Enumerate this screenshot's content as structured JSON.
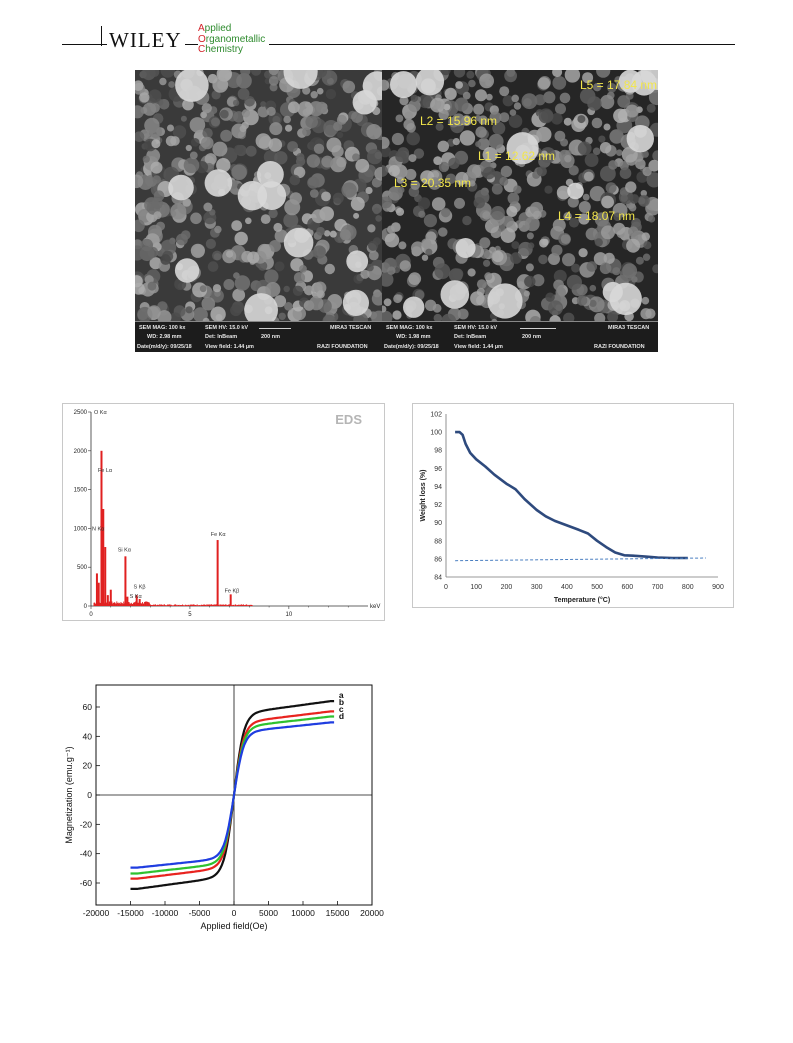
{
  "header": {
    "publisher": "WILEY",
    "journal_lines": [
      {
        "initial": "A",
        "rest": "pplied"
      },
      {
        "initial": "O",
        "rest": "rganometallic"
      },
      {
        "initial": "C",
        "rest": "hemistry"
      }
    ]
  },
  "sem": {
    "left_panel": {
      "info": [
        "SEM MAG: 100 kx",
        "SEM HV: 15.0 kV",
        "MIRA3 TESCAN",
        "WD: 2.98 mm",
        "Det: InBeam",
        "200 nm",
        "Date(m/d/y): 09/25/18",
        "View field: 1.44 µm",
        "RAZI FOUNDATION"
      ]
    },
    "right_panel": {
      "measurements": [
        "L5 = 17.84 nm",
        "L2 = 15.96 nm",
        "L1 = 12.62 nm",
        "L3 = 20.35 nm",
        "L4 = 18.07 nm"
      ],
      "info": [
        "SEM MAG: 100 kx",
        "SEM HV: 15.0 kV",
        "MIRA3 TESCAN",
        "WD: 1.98 mm",
        "Det: InBeam",
        "200 nm",
        "Date(m/d/y): 09/25/18",
        "View field: 1.44 µm",
        "RAZI FOUNDATION"
      ]
    }
  },
  "chart_data": [
    {
      "type": "bar",
      "title": "EDS",
      "xlabel": "keV",
      "ylabel": "",
      "xlim": [
        0,
        14
      ],
      "ylim": [
        0,
        2500
      ],
      "x_ticks": [
        0,
        5,
        10
      ],
      "y_ticks": [
        0,
        500,
        1000,
        1500,
        2000,
        2500
      ],
      "peaks": [
        {
          "x": 0.3,
          "y": 420
        },
        {
          "x": 0.53,
          "y": 2000
        },
        {
          "x": 0.62,
          "y": 1250
        },
        {
          "x": 0.72,
          "y": 760
        },
        {
          "x": 0.39,
          "y": 300
        },
        {
          "x": 0.85,
          "y": 140
        },
        {
          "x": 1.0,
          "y": 210
        },
        {
          "x": 1.74,
          "y": 640
        },
        {
          "x": 1.84,
          "y": 120
        },
        {
          "x": 2.31,
          "y": 140
        },
        {
          "x": 2.46,
          "y": 90
        },
        {
          "x": 6.4,
          "y": 850
        },
        {
          "x": 7.06,
          "y": 150
        }
      ],
      "peak_labels": [
        {
          "text": "O Kα",
          "x": 0.1,
          "y": 2500
        },
        {
          "text": "Fe Lα",
          "x": 0.3,
          "y": 1750
        },
        {
          "text": "N Kα",
          "x": 0.0,
          "y": 1000
        },
        {
          "text": "Si Kα",
          "x": 1.3,
          "y": 730
        },
        {
          "text": "S Kβ",
          "x": 2.1,
          "y": 250
        },
        {
          "text": "S Kα",
          "x": 1.9,
          "y": 130
        },
        {
          "text": "Fe Kα",
          "x": 6.0,
          "y": 930
        },
        {
          "text": "Fe Kβ",
          "x": 6.7,
          "y": 200
        }
      ]
    },
    {
      "type": "line",
      "title": "",
      "xlabel": "Temperature (°C)",
      "ylabel": "Weight loss (%)",
      "xlim": [
        0,
        900
      ],
      "ylim": [
        84,
        102
      ],
      "x_ticks": [
        0,
        100,
        200,
        300,
        400,
        500,
        600,
        700,
        800,
        900
      ],
      "y_ticks": [
        84,
        86,
        88,
        90,
        92,
        94,
        96,
        98,
        100,
        102
      ],
      "series": [
        {
          "name": "",
          "color": "#2e4a7d",
          "x": [
            30,
            45,
            55,
            65,
            80,
            100,
            130,
            160,
            200,
            230,
            260,
            300,
            330,
            360,
            400,
            440,
            470,
            500,
            530,
            560,
            590,
            620,
            660,
            700,
            750,
            800
          ],
          "y": [
            100,
            100,
            99.7,
            98.7,
            97.7,
            97.0,
            96.2,
            95.3,
            94.3,
            93.7,
            92.6,
            91.4,
            90.7,
            90.2,
            89.7,
            89.2,
            88.8,
            88.0,
            87.3,
            86.7,
            86.4,
            86.35,
            86.25,
            86.15,
            86.1,
            86.1
          ]
        },
        {
          "name": "",
          "color": "#4a7fc1",
          "style": "dashed",
          "x": [
            30,
            860
          ],
          "y": [
            85.8,
            86.1
          ]
        }
      ]
    },
    {
      "type": "line",
      "title": "",
      "xlabel": "Applied field(Oe)",
      "ylabel": "Magnetization (emu.g⁻¹)",
      "xlim": [
        -20000,
        20000
      ],
      "ylim": [
        -75,
        75
      ],
      "x_ticks": [
        -20000,
        -15000,
        -10000,
        -5000,
        0,
        5000,
        10000,
        15000,
        20000
      ],
      "y_ticks": [
        -60,
        -40,
        -20,
        0,
        20,
        40,
        60
      ],
      "series": [
        {
          "name": "a",
          "color": "#111111",
          "ms": 64
        },
        {
          "name": "b",
          "color": "#e8231f",
          "ms": 57
        },
        {
          "name": "c",
          "color": "#2fc12f",
          "ms": 53.5
        },
        {
          "name": "d",
          "color": "#1f3de0",
          "ms": 49.5
        }
      ]
    }
  ]
}
